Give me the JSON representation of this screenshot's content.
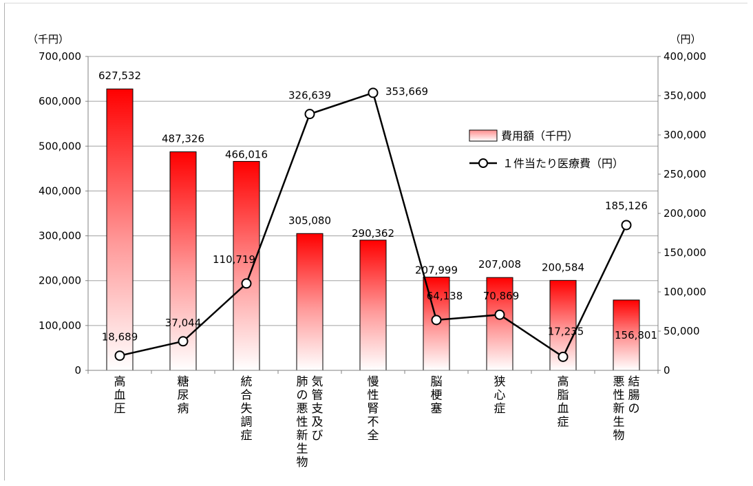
{
  "chart_data": {
    "type": "bar",
    "y_unit_left": "（千円）",
    "y_unit_right": "（円）",
    "ylim_left": [
      0,
      700000
    ],
    "ylim_right": [
      0,
      400000
    ],
    "yticks_left": [
      "0",
      "100,000",
      "200,000",
      "300,000",
      "400,000",
      "500,000",
      "600,000",
      "700,000"
    ],
    "yticks_right": [
      "0",
      "50,000",
      "100,000",
      "150,000",
      "200,000",
      "250,000",
      "300,000",
      "350,000",
      "400,000"
    ],
    "categories": [
      [
        "高血圧"
      ],
      [
        "糖尿病"
      ],
      [
        "統合失調症"
      ],
      [
        "気管支及び",
        "肺の悪性新生物"
      ],
      [
        "慢性腎不全"
      ],
      [
        "脳梗塞"
      ],
      [
        "狭心症"
      ],
      [
        "高脂血症"
      ],
      [
        "結腸の",
        "悪性新生物"
      ]
    ],
    "series": [
      {
        "name": "費用額（千円）",
        "type": "bar",
        "axis": "left",
        "values": [
          627532,
          487326,
          466016,
          305080,
          290362,
          207999,
          207008,
          200584,
          156801
        ],
        "labels": [
          "627,532",
          "487,326",
          "466,016",
          "305,080",
          "290,362",
          "207,999",
          "207,008",
          "200,584",
          "156,801"
        ]
      },
      {
        "name": "１件当たり医療費（円）",
        "type": "line",
        "axis": "right",
        "values": [
          18689,
          37044,
          110719,
          326639,
          353669,
          64138,
          70869,
          17235,
          185126
        ],
        "labels": [
          "18,689",
          "37,044",
          "110,719",
          "326,639",
          "353,669",
          "64,138",
          "70,869",
          "17,235",
          "185,126"
        ]
      }
    ],
    "grid": true,
    "legend": "right",
    "colors": {
      "bar_top": "#ff0000",
      "bar_bottom": "#ffffff",
      "line": "#000000",
      "grid": "#a0a0a0"
    }
  }
}
